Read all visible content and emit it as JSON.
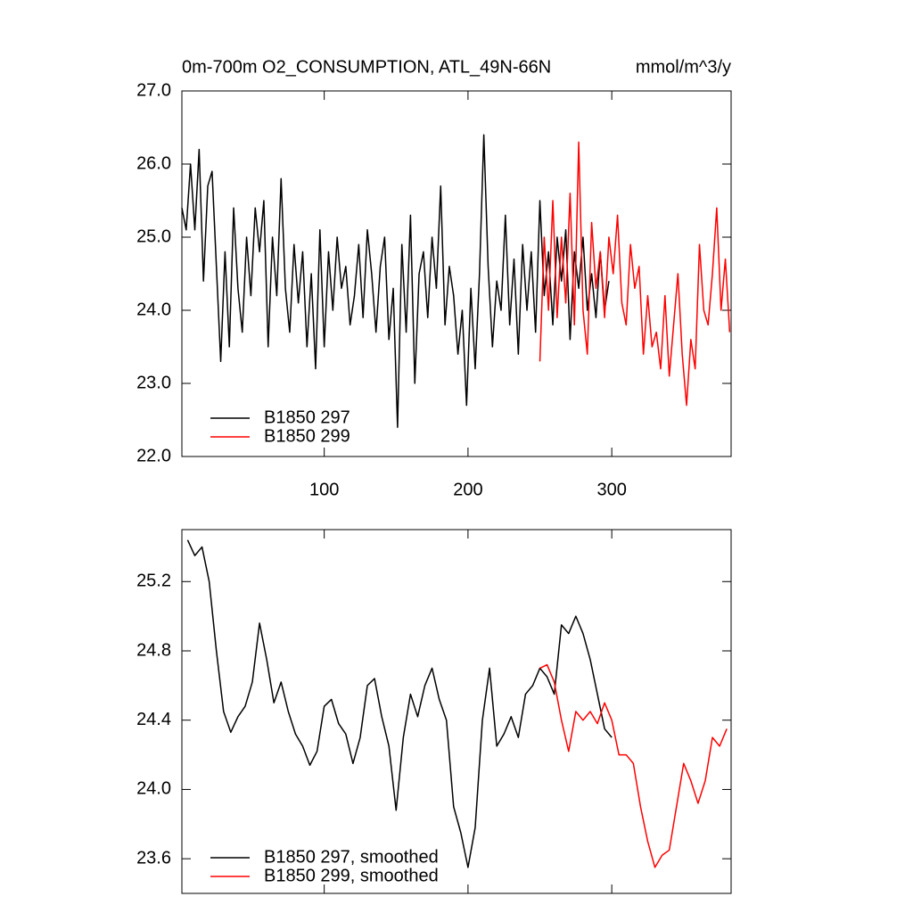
{
  "chart_data": [
    {
      "type": "line",
      "title": "0m-700m O2_CONSUMPTION, ATL_49N-66N",
      "units": "mmol/m^3/y",
      "xlim": [
        1,
        383
      ],
      "xticks": [
        100,
        200,
        300
      ],
      "show_xtick_labels": true,
      "ylim": [
        22,
        27
      ],
      "yticks": [
        {
          "value": 22,
          "label": "22.0"
        },
        {
          "value": 23,
          "label": "23.0"
        },
        {
          "value": 24,
          "label": "24.0"
        },
        {
          "value": 25,
          "label": "25.0"
        },
        {
          "value": 26,
          "label": "26.0"
        },
        {
          "value": 27,
          "label": "27.0"
        }
      ],
      "legend": "bottom-left",
      "series": [
        {
          "name": "B1850 297",
          "color": "#000000",
          "x": [
            1,
            4,
            7,
            10,
            13,
            16,
            19,
            22,
            25,
            28,
            31,
            34,
            37,
            40,
            43,
            46,
            49,
            52,
            55,
            58,
            61,
            64,
            67,
            70,
            73,
            76,
            79,
            82,
            85,
            88,
            91,
            94,
            97,
            100,
            103,
            106,
            109,
            112,
            115,
            118,
            121,
            124,
            127,
            130,
            133,
            136,
            139,
            142,
            145,
            148,
            151,
            154,
            157,
            160,
            163,
            166,
            169,
            172,
            175,
            178,
            181,
            184,
            187,
            190,
            193,
            196,
            199,
            202,
            205,
            208,
            211,
            214,
            217,
            220,
            223,
            226,
            229,
            232,
            235,
            238,
            241,
            244,
            247,
            250,
            253,
            256,
            259,
            262,
            265,
            268,
            271,
            274,
            277,
            280,
            283,
            286,
            289,
            292,
            295,
            298
          ],
          "values": [
            25.4,
            25.1,
            26.0,
            25.1,
            26.2,
            24.4,
            25.7,
            25.9,
            24.6,
            23.3,
            24.8,
            23.5,
            25.4,
            24.3,
            23.7,
            25.0,
            24.2,
            25.4,
            24.8,
            25.5,
            23.5,
            25.0,
            24.2,
            25.8,
            24.3,
            23.7,
            24.9,
            24.1,
            24.8,
            23.5,
            24.5,
            23.2,
            25.1,
            23.5,
            24.8,
            24.0,
            25.0,
            24.3,
            24.6,
            23.8,
            24.2,
            24.9,
            23.9,
            25.1,
            24.5,
            23.7,
            24.6,
            25.0,
            23.6,
            24.3,
            22.4,
            24.9,
            23.7,
            25.3,
            23.0,
            24.5,
            24.8,
            23.9,
            25.0,
            24.3,
            25.7,
            23.8,
            24.6,
            24.2,
            23.4,
            24.0,
            22.7,
            24.3,
            23.2,
            24.5,
            26.4,
            24.6,
            23.5,
            24.4,
            24.0,
            25.3,
            23.8,
            24.7,
            23.4,
            24.9,
            24.0,
            24.8,
            23.7,
            25.5,
            24.2,
            24.8,
            23.8,
            25.0,
            24.4,
            25.1,
            23.6,
            24.8,
            24.3,
            25.0,
            24.0,
            24.5,
            23.9,
            24.8,
            24.0,
            24.4
          ]
        },
        {
          "name": "B1850 299",
          "color": "#ff0000",
          "x": [
            250,
            253,
            256,
            259,
            262,
            265,
            268,
            271,
            274,
            277,
            280,
            283,
            286,
            289,
            292,
            295,
            298,
            301,
            304,
            307,
            310,
            313,
            316,
            319,
            322,
            325,
            328,
            331,
            334,
            337,
            340,
            343,
            346,
            349,
            352,
            355,
            358,
            361,
            364,
            367,
            370,
            373,
            376,
            379,
            382
          ],
          "values": [
            23.3,
            25.0,
            24.0,
            25.5,
            23.9,
            25.0,
            24.1,
            25.6,
            23.8,
            26.3,
            24.0,
            23.4,
            25.2,
            24.3,
            24.8,
            23.9,
            25.0,
            24.5,
            25.3,
            24.1,
            23.8,
            24.9,
            24.3,
            24.6,
            23.4,
            24.2,
            23.5,
            23.7,
            23.2,
            24.2,
            23.1,
            23.8,
            24.5,
            23.4,
            22.7,
            23.6,
            23.2,
            24.9,
            24.0,
            23.8,
            24.5,
            25.4,
            24.0,
            24.7,
            23.7
          ]
        }
      ]
    },
    {
      "type": "line",
      "xlim": [
        1,
        383
      ],
      "xticks": [
        100,
        200,
        300
      ],
      "show_xtick_labels": false,
      "ylim": [
        23.4,
        25.5
      ],
      "yticks": [
        23.6,
        {
          "value": 24,
          "label": "24.0"
        },
        24.4,
        24.8,
        25.2
      ],
      "legend": "bottom-left",
      "series": [
        {
          "name": "B1850 297, smoothed",
          "color": "#000000",
          "x": [
            5,
            10,
            15,
            20,
            25,
            30,
            35,
            40,
            45,
            50,
            55,
            60,
            65,
            70,
            75,
            80,
            85,
            90,
            95,
            100,
            105,
            110,
            115,
            120,
            125,
            130,
            135,
            140,
            145,
            150,
            155,
            160,
            165,
            170,
            175,
            180,
            185,
            190,
            195,
            200,
            205,
            210,
            215,
            220,
            225,
            230,
            235,
            240,
            245,
            250,
            255,
            260,
            265,
            270,
            275,
            280,
            285,
            290,
            295,
            300
          ],
          "values": [
            25.44,
            25.35,
            25.4,
            25.2,
            24.8,
            24.45,
            24.33,
            24.42,
            24.48,
            24.62,
            24.96,
            24.75,
            24.5,
            24.62,
            24.45,
            24.32,
            24.25,
            24.14,
            24.22,
            24.48,
            24.52,
            24.38,
            24.32,
            24.15,
            24.3,
            24.6,
            24.64,
            24.42,
            24.25,
            23.88,
            24.3,
            24.55,
            24.42,
            24.6,
            24.7,
            24.52,
            24.4,
            23.9,
            23.75,
            23.55,
            23.78,
            24.4,
            24.7,
            24.25,
            24.32,
            24.42,
            24.3,
            24.55,
            24.6,
            24.7,
            24.65,
            24.55,
            24.95,
            24.9,
            25.0,
            24.9,
            24.75,
            24.55,
            24.35,
            24.3
          ]
        },
        {
          "name": "B1850 299, smoothed",
          "color": "#ff0000",
          "x": [
            250,
            255,
            260,
            265,
            270,
            275,
            280,
            285,
            290,
            295,
            300,
            305,
            310,
            315,
            320,
            325,
            330,
            335,
            340,
            345,
            350,
            355,
            360,
            365,
            370,
            375,
            380
          ],
          "values": [
            24.7,
            24.72,
            24.62,
            24.4,
            24.22,
            24.45,
            24.4,
            24.45,
            24.38,
            24.5,
            24.4,
            24.2,
            24.2,
            24.15,
            23.9,
            23.7,
            23.55,
            23.62,
            23.65,
            23.9,
            24.15,
            24.05,
            23.92,
            24.05,
            24.3,
            24.25,
            24.35
          ]
        }
      ]
    }
  ]
}
